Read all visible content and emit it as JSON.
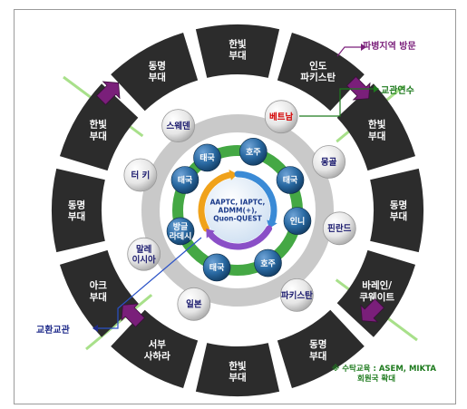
{
  "outer_units": [
    {
      "lines": [
        "한빛",
        "부대"
      ]
    },
    {
      "lines": [
        "인도",
        "파키스탄"
      ]
    },
    {
      "lines": [
        "한빛",
        "부대"
      ]
    },
    {
      "lines": [
        "동명",
        "부대"
      ]
    },
    {
      "lines": [
        "바레인/",
        "쿠웨이트"
      ]
    },
    {
      "lines": [
        "동명",
        "부대"
      ]
    },
    {
      "lines": [
        "한빛",
        "부대"
      ]
    },
    {
      "lines": [
        "서부",
        "사하라"
      ]
    },
    {
      "lines": [
        "아크",
        "부대"
      ]
    },
    {
      "lines": [
        "동명",
        "부대"
      ]
    },
    {
      "lines": [
        "한빛",
        "부대"
      ]
    },
    {
      "lines": [
        "동명",
        "부대"
      ]
    }
  ],
  "middle_countries": [
    {
      "lines": [
        "스웨덴"
      ]
    },
    {
      "lines": [
        "베트남"
      ]
    },
    {
      "lines": [
        "몽골"
      ]
    },
    {
      "lines": [
        "핀란드"
      ]
    },
    {
      "lines": [
        "파키스탄"
      ]
    },
    {
      "lines": [
        "일본"
      ]
    },
    {
      "lines": [
        "말레",
        "이시아"
      ]
    },
    {
      "lines": [
        "터 키"
      ]
    }
  ],
  "inner_countries": [
    {
      "lines": [
        "태국"
      ]
    },
    {
      "lines": [
        "호주"
      ]
    },
    {
      "lines": [
        "태국"
      ]
    },
    {
      "lines": [
        "인니"
      ]
    },
    {
      "lines": [
        "호주"
      ]
    },
    {
      "lines": [
        "태국"
      ]
    },
    {
      "lines": [
        "방글",
        "라데시"
      ]
    },
    {
      "lines": [
        "태국"
      ]
    }
  ],
  "center": {
    "lines": [
      "AAPTC, IAPTC,",
      "ADMM(+),",
      "Quon-QUEST"
    ]
  },
  "labels": {
    "dispatch_visit": "파병지역 방문",
    "training": "교관연수",
    "exchange": "교환교관"
  },
  "footnote": {
    "line1": "※ 수탁교육 : ASEM, MIKTA",
    "line2": "회원국 확대"
  },
  "colors": {
    "outer_tile": "#2c2c2c",
    "outer_text": "#ffffff",
    "middle_text_highlight": "#d40000",
    "country_text": "#1a1a6e",
    "inner_fill": "#1f5f8f",
    "ring_grey": "#c9c9c9",
    "ring_green": "#44a844",
    "arrow_purple": "#7a1f7a",
    "diag_line": "#a8e08a"
  },
  "icons": [
    "purple-arrow-icon",
    "purple-arrow-icon",
    "purple-arrow-icon",
    "purple-arrow-icon",
    "cycle-arrows-icon"
  ]
}
